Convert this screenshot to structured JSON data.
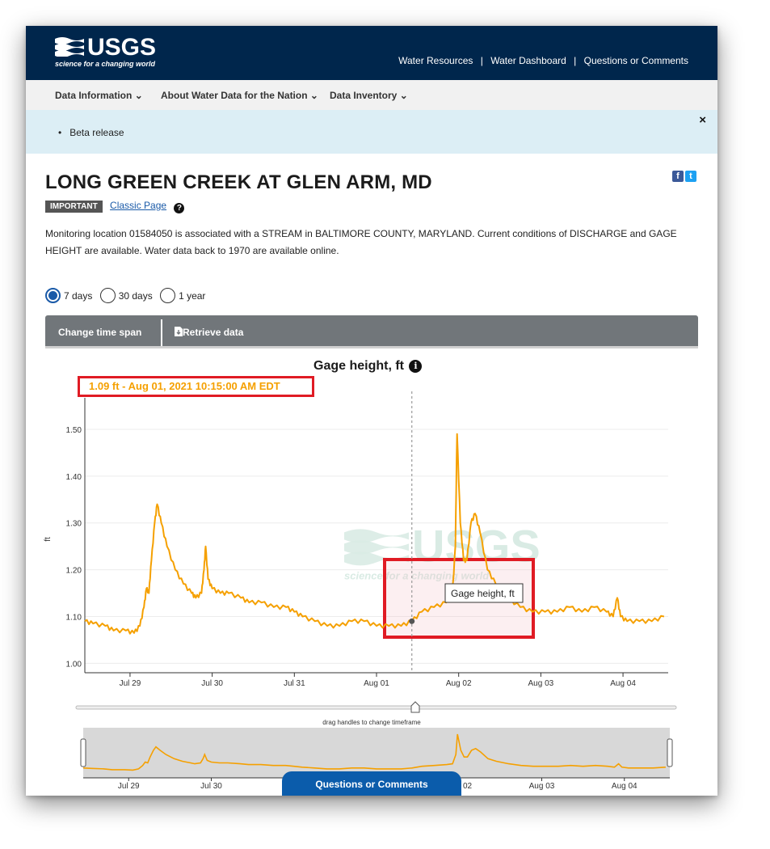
{
  "header": {
    "logo_text": "USGS",
    "logo_tagline": "science for a changing world",
    "links": [
      "Water Resources",
      "Water Dashboard",
      "Questions or Comments"
    ],
    "link_separator": "|"
  },
  "nav": {
    "items": [
      "Data Information",
      "About Water Data for the Nation",
      "Data Inventory"
    ],
    "chevron": "⌄"
  },
  "banner": {
    "text": "Beta release",
    "close_label": "×"
  },
  "site": {
    "title": "LONG GREEN CREEK AT GLEN ARM, MD",
    "important_badge": "IMPORTANT",
    "classic_page_link": "Classic Page",
    "help_icon": "?",
    "description": "Monitoring location 01584050 is associated with a STREAM in BALTIMORE COUNTY, MARYLAND. Current conditions of DISCHARGE and GAGE HEIGHT are available. Water data back to 1970 are available online."
  },
  "social": {
    "facebook": "f",
    "twitter": "t"
  },
  "time_span": {
    "options": [
      "7 days",
      "30 days",
      "1 year"
    ],
    "selected": "7 days"
  },
  "toolbar": {
    "change_time_span": "Change time span",
    "retrieve_data": "Retrieve data"
  },
  "chart": {
    "title": "Gage height, ft",
    "info_icon": "i",
    "readout": "1.09 ft - Aug 01, 2021 10:15:00 AM EDT",
    "tooltip": "Gage height, ft",
    "watermark": "USGS",
    "watermark_tagline": "science for a changing world",
    "brush_hint": "drag handles to change timeframe"
  },
  "colors": {
    "header_bg": "#00264c",
    "series": "#f5a000",
    "highlight_box": "#e01b24",
    "toolbar": "#71767a",
    "banner_bg": "#dceef5",
    "link": "#1a5aa8",
    "button_bg": "#0b5cab"
  },
  "floating_button": "Questions or Comments",
  "chart_data": {
    "type": "line",
    "title": "Gage height, ft",
    "ylabel": "ft",
    "xlabel": "",
    "ylim": [
      0.98,
      1.55
    ],
    "yticks": [
      "1.00",
      "1.10",
      "1.20",
      "1.30",
      "1.40",
      "1.50"
    ],
    "ytick_values": [
      1.0,
      1.1,
      1.2,
      1.3,
      1.4,
      1.5
    ],
    "xticks": [
      "Jul 29",
      "Jul 30",
      "Jul 31",
      "Aug 01",
      "Aug 02",
      "Aug 03",
      "Aug 04"
    ],
    "x_range_days": [
      -0.55,
      6.55
    ],
    "grid": true,
    "cursor_day": 3.43,
    "cursor_value": 1.09,
    "series": [
      {
        "name": "Gage height, ft",
        "points": [
          [
            -0.55,
            1.09
          ],
          [
            -0.45,
            1.085
          ],
          [
            -0.3,
            1.08
          ],
          [
            -0.2,
            1.07
          ],
          [
            -0.05,
            1.07
          ],
          [
            0.05,
            1.065
          ],
          [
            0.12,
            1.08
          ],
          [
            0.17,
            1.12
          ],
          [
            0.2,
            1.16
          ],
          [
            0.23,
            1.15
          ],
          [
            0.26,
            1.22
          ],
          [
            0.3,
            1.3
          ],
          [
            0.33,
            1.34
          ],
          [
            0.38,
            1.3
          ],
          [
            0.45,
            1.25
          ],
          [
            0.55,
            1.2
          ],
          [
            0.65,
            1.17
          ],
          [
            0.75,
            1.15
          ],
          [
            0.8,
            1.14
          ],
          [
            0.87,
            1.15
          ],
          [
            0.9,
            1.2
          ],
          [
            0.92,
            1.25
          ],
          [
            0.95,
            1.18
          ],
          [
            1.0,
            1.16
          ],
          [
            1.1,
            1.15
          ],
          [
            1.2,
            1.15
          ],
          [
            1.35,
            1.14
          ],
          [
            1.45,
            1.13
          ],
          [
            1.6,
            1.13
          ],
          [
            1.75,
            1.12
          ],
          [
            1.9,
            1.12
          ],
          [
            2.0,
            1.11
          ],
          [
            2.1,
            1.1
          ],
          [
            2.25,
            1.09
          ],
          [
            2.4,
            1.08
          ],
          [
            2.55,
            1.08
          ],
          [
            2.7,
            1.09
          ],
          [
            2.85,
            1.09
          ],
          [
            3.0,
            1.08
          ],
          [
            3.15,
            1.08
          ],
          [
            3.3,
            1.08
          ],
          [
            3.43,
            1.09
          ],
          [
            3.55,
            1.11
          ],
          [
            3.7,
            1.12
          ],
          [
            3.85,
            1.13
          ],
          [
            3.92,
            1.14
          ],
          [
            3.96,
            1.25
          ],
          [
            3.98,
            1.49
          ],
          [
            4.02,
            1.3
          ],
          [
            4.06,
            1.22
          ],
          [
            4.1,
            1.22
          ],
          [
            4.15,
            1.3
          ],
          [
            4.2,
            1.32
          ],
          [
            4.26,
            1.28
          ],
          [
            4.35,
            1.2
          ],
          [
            4.45,
            1.17
          ],
          [
            4.6,
            1.14
          ],
          [
            4.75,
            1.12
          ],
          [
            4.9,
            1.11
          ],
          [
            5.05,
            1.11
          ],
          [
            5.2,
            1.11
          ],
          [
            5.35,
            1.12
          ],
          [
            5.5,
            1.11
          ],
          [
            5.65,
            1.12
          ],
          [
            5.8,
            1.11
          ],
          [
            5.88,
            1.1
          ],
          [
            5.93,
            1.14
          ],
          [
            5.97,
            1.1
          ],
          [
            6.05,
            1.09
          ],
          [
            6.2,
            1.09
          ],
          [
            6.35,
            1.09
          ],
          [
            6.5,
            1.1
          ]
        ]
      }
    ]
  }
}
